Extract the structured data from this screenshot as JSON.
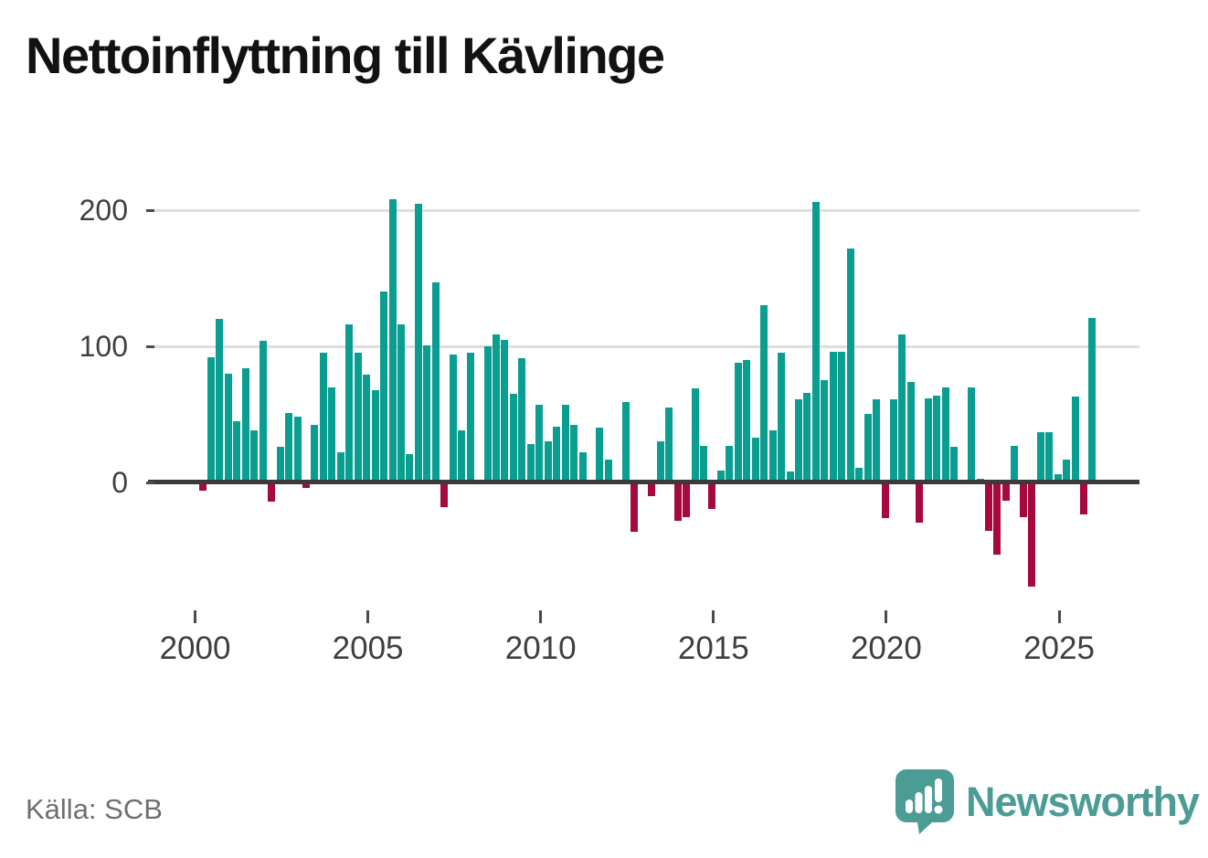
{
  "title": "Nettoinflyttning till Kävlinge",
  "source": "Källa: SCB",
  "logo": {
    "text": "Newsworthy"
  },
  "colors": {
    "positive_bar": "#0a9e91",
    "negative_bar": "#a5093f",
    "gridline": "#dedede",
    "axis": "#3b3b3b",
    "tick_label": "#3f3f3f",
    "title": "#121212",
    "source_text": "#6f6f6f",
    "logo_teal": "#4c9c96"
  },
  "chart_data": {
    "type": "bar",
    "title": "Nettoinflyttning till Kävlinge",
    "period": "quarterly",
    "start_quarter": "2000 Q1",
    "end_quarter": "2025 Q4",
    "x_tick_labels": [
      "2000",
      "2005",
      "2010",
      "2015",
      "2020",
      "2025"
    ],
    "y_tick_labels": [
      "0",
      "100",
      "200"
    ],
    "y_ticks": [
      0,
      100,
      200
    ],
    "ylim": [
      -90,
      230
    ],
    "grid": "horizontal",
    "legend": "none",
    "values": [
      -5,
      92,
      120,
      80,
      45,
      84,
      38,
      104,
      -13,
      26,
      51,
      48,
      -3,
      42,
      95,
      70,
      22,
      116,
      95,
      79,
      68,
      140,
      208,
      116,
      21,
      205,
      101,
      147,
      -17,
      94,
      38,
      95,
      0,
      100,
      109,
      105,
      65,
      91,
      28,
      57,
      30,
      41,
      57,
      42,
      22,
      0,
      40,
      17,
      0,
      59,
      -35,
      0,
      -9,
      30,
      55,
      -27,
      -24,
      69,
      27,
      -18,
      9,
      27,
      88,
      90,
      33,
      130,
      38,
      95,
      8,
      61,
      66,
      206,
      75,
      96,
      96,
      172,
      11,
      50,
      61,
      -25,
      61,
      109,
      74,
      -28,
      62,
      64,
      70,
      26,
      0,
      70,
      3,
      -34,
      -52,
      -12,
      27,
      -24,
      -75,
      37,
      37,
      6,
      17,
      63,
      -22,
      121
    ]
  }
}
